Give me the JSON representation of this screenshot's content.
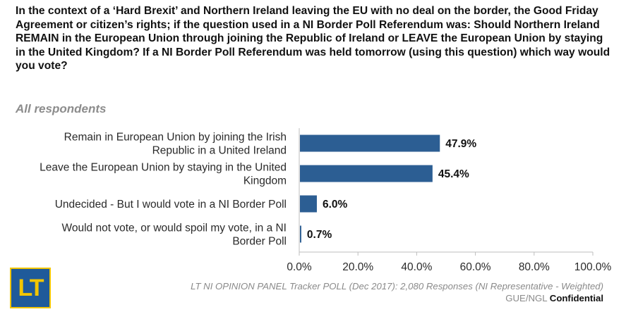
{
  "question": "In the context of a ‘Hard Brexit’ and Northern Ireland leaving the EU with no deal on the border, the Good Friday Agreement or citizen’s rights; if the question used in a NI Border Poll Referendum was: Should Northern Ireland REMAIN in the European Union through joining the Republic of Ireland or LEAVE the European Union by staying in the United Kingdom? If a NI Border Poll Referendum was held tomorrow (using this question) which way would you vote?",
  "subtitle": "All respondents",
  "source": "LT NI OPINION PANEL Tracker POLL (Dec 2017): 2,080 Responses (NI Representative - Weighted)",
  "footer": {
    "org": "GUE/NGL",
    "confidential": "Confidential"
  },
  "logo": {
    "text": "LT",
    "bg_color": "#1f5a9a",
    "fg_color": "#f2c500"
  },
  "chart_data": {
    "type": "bar",
    "orientation": "horizontal",
    "title": "All respondents",
    "categories": [
      [
        "Remain in European Union by joining the Irish",
        "Republic in a United Ireland"
      ],
      [
        "Leave the European Union by staying in the United",
        "Kingdom"
      ],
      [
        "Undecided - But I would vote in a NI Border Poll"
      ],
      [
        "Would not vote, or would spoil my vote, in a NI",
        "Border Poll"
      ]
    ],
    "values": [
      47.9,
      45.4,
      6.0,
      0.7
    ],
    "value_labels": [
      "47.9%",
      "45.4%",
      "6.0%",
      "0.7%"
    ],
    "xlim": [
      0,
      100
    ],
    "xticks": [
      0,
      20,
      40,
      60,
      80,
      100
    ],
    "xtick_labels": [
      "0.0%",
      "20.0%",
      "40.0%",
      "60.0%",
      "80.0%",
      "100.0%"
    ],
    "bar_color": "#2c5e93",
    "grid": false
  }
}
